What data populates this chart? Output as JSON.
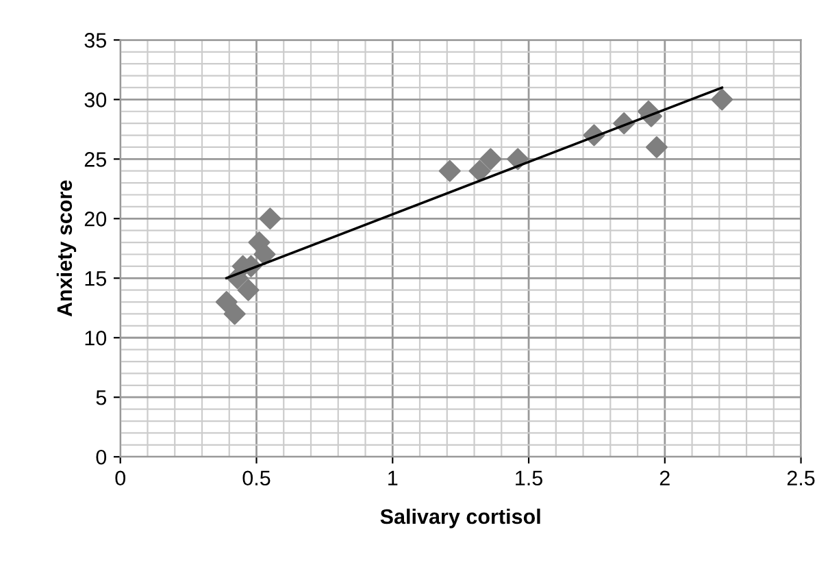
{
  "chart_data": {
    "type": "scatter",
    "xlabel": "Salivary cortisol",
    "ylabel": "Anxiety score",
    "xlim": [
      0,
      2.5
    ],
    "xticks": [
      0,
      0.5,
      1,
      1.5,
      2,
      2.5
    ],
    "ylim": [
      0,
      35
    ],
    "yticks": [
      0,
      5,
      10,
      15,
      20,
      25,
      30,
      35
    ],
    "grid": true,
    "series": [
      {
        "marker": "diamond",
        "color": "#7f7f7f",
        "x": [
          0.39,
          0.42,
          0.43,
          0.45,
          0.47,
          0.48,
          0.51,
          0.53,
          0.55,
          1.21,
          1.32,
          1.36,
          1.46,
          1.74,
          1.85,
          1.94,
          1.95,
          1.97,
          2.21
        ],
        "values": [
          13,
          12,
          15,
          16,
          14,
          16,
          18,
          17,
          20,
          24,
          24,
          25,
          25,
          27,
          28,
          29,
          28.6,
          26,
          30
        ]
      },
      {
        "type": "line",
        "marker": "none",
        "color": "#000000",
        "x": [
          0.39,
          2.21
        ],
        "values": [
          15,
          31
        ]
      }
    ]
  }
}
